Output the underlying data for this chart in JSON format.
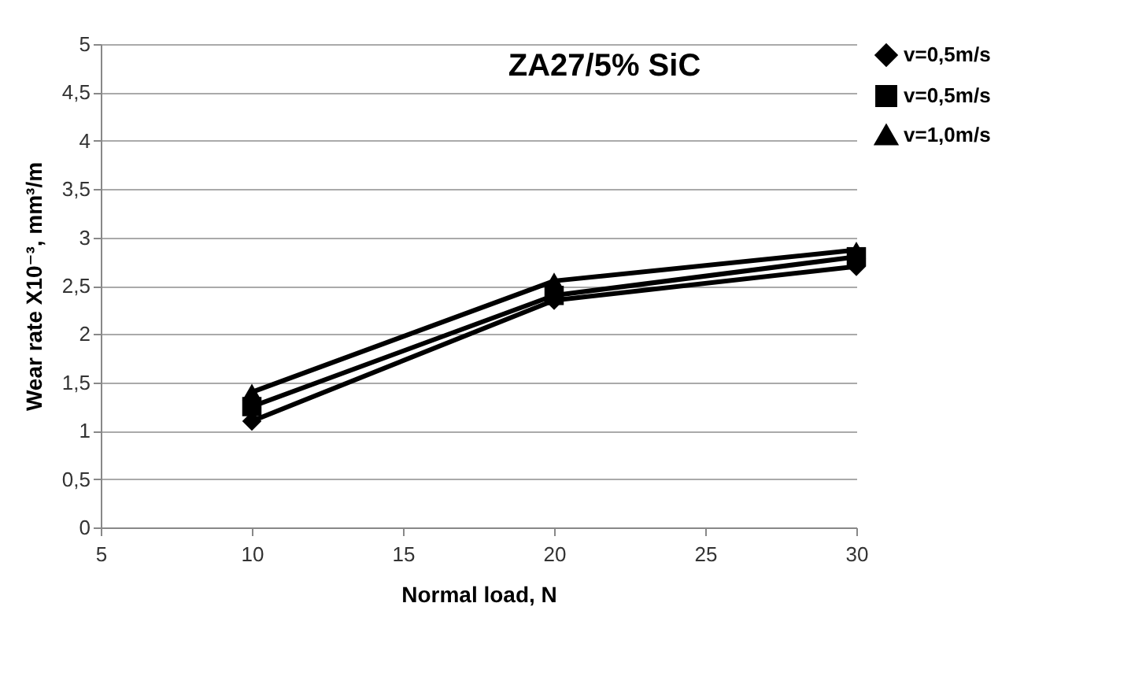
{
  "chart_data": {
    "type": "line",
    "title": "ZA27/5% SiC",
    "xlabel": "Normal load, N",
    "ylabel": "Wear rate X10⁻³, mm³/m",
    "x": [
      10,
      20,
      30
    ],
    "series": [
      {
        "name": "v=0,5m/s",
        "color": "#000000",
        "marker": "diamond",
        "values": [
          1.1,
          2.35,
          2.7
        ]
      },
      {
        "name": "v=0,5m/s",
        "color": "#000000",
        "marker": "square",
        "values": [
          1.25,
          2.4,
          2.8
        ]
      },
      {
        "name": "v=1,0m/s",
        "color": "#000000",
        "marker": "triangle",
        "values": [
          1.4,
          2.55,
          2.87
        ]
      }
    ],
    "xlim": [
      5,
      30
    ],
    "xticks": [
      5,
      10,
      15,
      20,
      25,
      30
    ],
    "ylim": [
      0,
      5
    ],
    "yticks": [
      0,
      {
        "value": 0.5,
        "label": "0,5"
      },
      1,
      {
        "value": 1.5,
        "label": "1,5"
      },
      2,
      {
        "value": 2.5,
        "label": "2,5"
      },
      3,
      {
        "value": 3.5,
        "label": "3,5"
      },
      4,
      {
        "value": 4.5,
        "label": "4,5"
      },
      5
    ],
    "grid": "y",
    "legend": "right",
    "line_style": "solid"
  }
}
